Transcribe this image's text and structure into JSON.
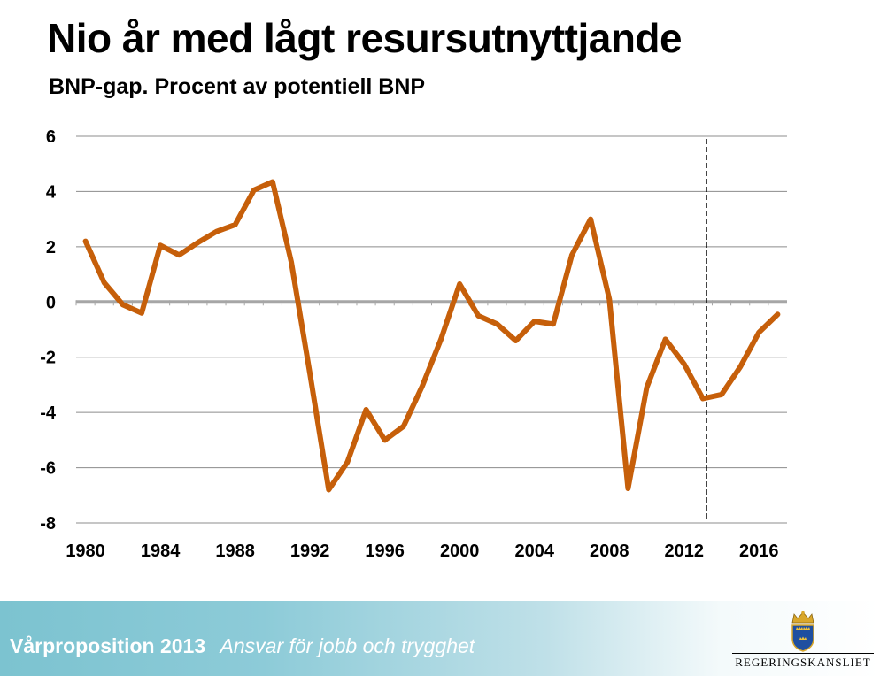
{
  "header": {
    "title": "Nio år med lågt resursutnyttjande",
    "subtitle": "BNP-gap. Procent av potentiell BNP"
  },
  "footer": {
    "bold_text": "Vårproposition 2013",
    "italic_text": "Ansvar för jobb och trygghet",
    "logo_text": "REGERINGSKANSLIET"
  },
  "chart_data": {
    "type": "line",
    "title": "Nio år med lågt resursutnyttjande",
    "subtitle": "BNP-gap. Procent av potentiell BNP",
    "ylim": [
      -8,
      6
    ],
    "yticks": [
      6,
      4,
      2,
      0,
      -2,
      -4,
      -6,
      -8
    ],
    "xlim": [
      1979.5,
      2017.5
    ],
    "xticks": [
      1980,
      1984,
      1988,
      1992,
      1996,
      2000,
      2004,
      2008,
      2012,
      2016
    ],
    "grid": true,
    "forecast_line_year": 2013.2,
    "line_color": "#c65f0a",
    "series": [
      {
        "x": [
          1980,
          1981,
          1982,
          1983,
          1984,
          1985,
          1986,
          1987,
          1988,
          1989,
          1990,
          1991,
          1992,
          1993,
          1994,
          1995,
          1996,
          1997,
          1998,
          1999,
          2000,
          2001,
          2002,
          2003,
          2004,
          2005,
          2006,
          2007,
          2008,
          2009,
          2010,
          2011,
          2012,
          2013,
          2014,
          2015,
          2016,
          2017
        ],
        "values": [
          2.2,
          0.7,
          -0.1,
          -0.4,
          2.05,
          1.7,
          2.15,
          2.55,
          2.8,
          4.05,
          4.35,
          1.45,
          -2.6,
          -6.8,
          -5.8,
          -3.9,
          -5.0,
          -4.5,
          -3.05,
          -1.35,
          0.65,
          -0.5,
          -0.8,
          -1.4,
          -0.7,
          -0.8,
          1.7,
          3.0,
          0.1,
          -6.75,
          -3.1,
          -1.35,
          -2.25,
          -3.5,
          -3.35,
          -2.35,
          -1.1,
          -0.45
        ]
      }
    ]
  }
}
